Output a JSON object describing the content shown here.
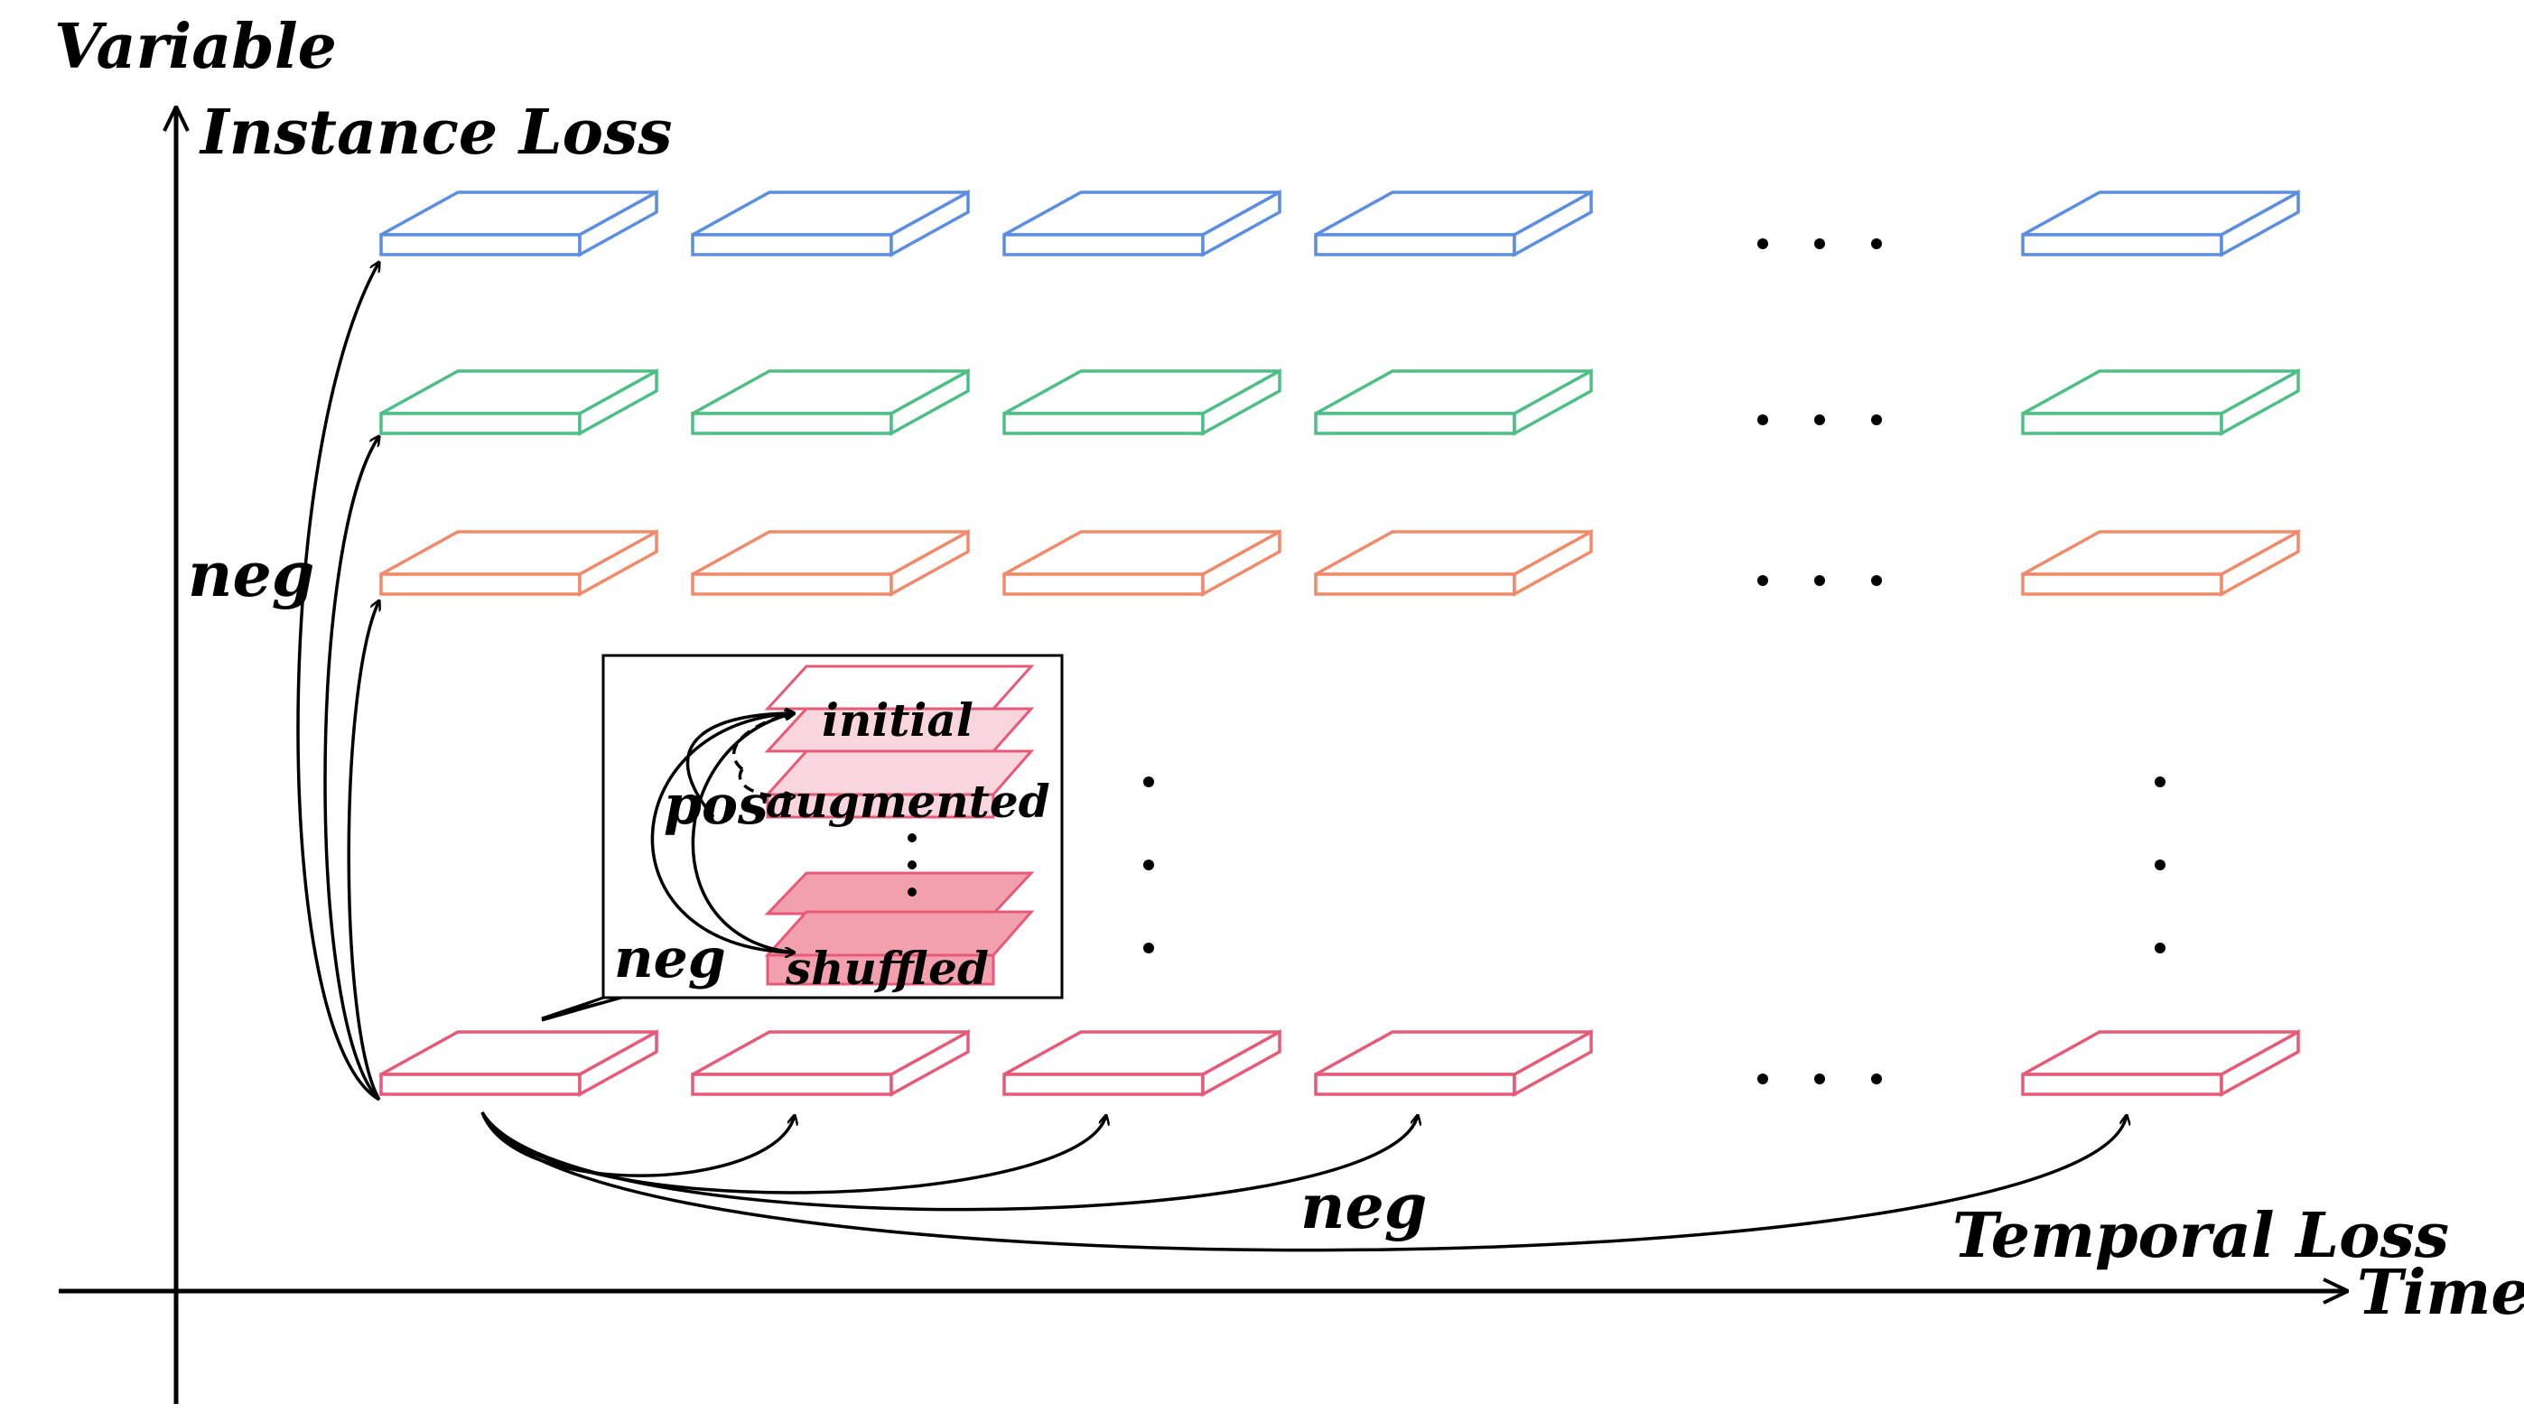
{
  "axes": {
    "y_label": "Variable",
    "x_label": "Time"
  },
  "labels": {
    "instance_loss": "Instance Loss",
    "temporal_loss": "Temporal Loss",
    "neg_left": "neg",
    "neg_bottom": "neg"
  },
  "inset": {
    "pos": "pos",
    "neg": "neg",
    "initial": "initial",
    "augmented": "augmented",
    "shuffled": "shuffled"
  },
  "rows": [
    {
      "color": "#5b8de0"
    },
    {
      "color": "#4dbf85"
    },
    {
      "color": "#f08a6a"
    },
    {
      "color": "#e65a78"
    }
  ],
  "colors": {
    "slab_fill_light": "#f9d6dd",
    "slab_fill_dark": "#f2a0ae",
    "slab_stroke": "#e65a78"
  }
}
